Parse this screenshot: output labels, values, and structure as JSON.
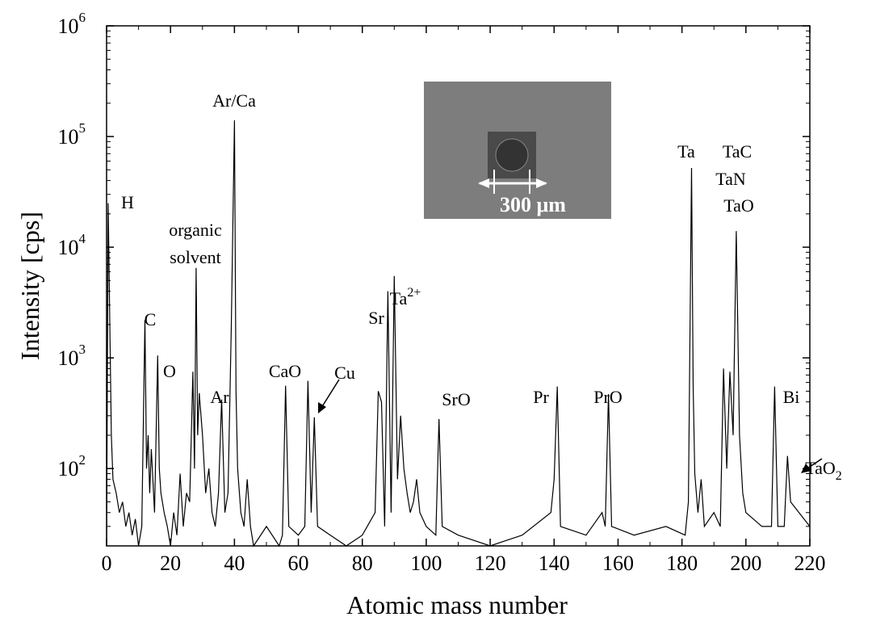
{
  "chart_data": {
    "type": "line",
    "x_label": "Atomic mass number",
    "y_label": "Intensity [cps]",
    "log_y": true,
    "color": "#000000",
    "xlim": [
      0,
      220
    ],
    "xticks": [
      0,
      20,
      40,
      60,
      80,
      100,
      120,
      140,
      160,
      180,
      200,
      220
    ],
    "ylim": [
      20,
      1000000
    ],
    "yticks": [
      {
        "value": 100,
        "label": "10",
        "label_sup": "2"
      },
      {
        "value": 1000,
        "label": "10",
        "label_sup": "3"
      },
      {
        "value": 10000,
        "label": "10",
        "label_sup": "4"
      },
      {
        "value": 100000,
        "label": "10",
        "label_sup": "5"
      },
      {
        "value": 1000000,
        "label": "10",
        "label_sup": "6"
      }
    ],
    "x": [
      0,
      0.5,
      1,
      1.5,
      2,
      3,
      4,
      5,
      6,
      7,
      8,
      9,
      10,
      11,
      12,
      12.5,
      13,
      13.5,
      14,
      15,
      16,
      16.5,
      17,
      18,
      19,
      20,
      21,
      22,
      23,
      24,
      25,
      26,
      27,
      27.5,
      28,
      28.5,
      29,
      30,
      31,
      32,
      33,
      34,
      35,
      36,
      37,
      38,
      39,
      40,
      40.5,
      41,
      42,
      43,
      44,
      45,
      46,
      50,
      54,
      55,
      56,
      57,
      60,
      62,
      63,
      64,
      65,
      66,
      70,
      75,
      80,
      84,
      85,
      86,
      87,
      88,
      89,
      90,
      91,
      92,
      93,
      94,
      95,
      96,
      97,
      98,
      100,
      103,
      104,
      105,
      110,
      120,
      130,
      139,
      140,
      141,
      142,
      150,
      155,
      156,
      157,
      158,
      165,
      175,
      181,
      182,
      183,
      183.5,
      184,
      185,
      186,
      187,
      190,
      192,
      193,
      194,
      195,
      196,
      197,
      198,
      199,
      200,
      205,
      208,
      209,
      210,
      212,
      213,
      214,
      220
    ],
    "values": [
      20,
      25000,
      2000,
      200,
      80,
      60,
      40,
      50,
      30,
      40,
      25,
      35,
      20,
      30,
      2200,
      100,
      200,
      60,
      150,
      40,
      1050,
      100,
      60,
      40,
      30,
      20,
      40,
      25,
      90,
      30,
      60,
      50,
      750,
      100,
      6500,
      200,
      480,
      200,
      60,
      100,
      40,
      30,
      60,
      420,
      40,
      60,
      1800,
      140000,
      500,
      100,
      40,
      30,
      80,
      30,
      20,
      30,
      20,
      25,
      560,
      30,
      25,
      30,
      620,
      40,
      290,
      30,
      25,
      20,
      25,
      40,
      500,
      400,
      30,
      4000,
      40,
      5500,
      80,
      300,
      100,
      60,
      40,
      50,
      80,
      40,
      30,
      25,
      280,
      30,
      25,
      20,
      25,
      40,
      80,
      550,
      30,
      25,
      40,
      30,
      470,
      30,
      25,
      30,
      25,
      50,
      52000,
      550,
      90,
      40,
      80,
      30,
      40,
      30,
      800,
      100,
      750,
      200,
      14000,
      200,
      60,
      40,
      30,
      30,
      550,
      30,
      30,
      130,
      50,
      30
    ],
    "annotations": [
      {
        "text": "H"
      },
      {
        "text": "C"
      },
      {
        "text": "O"
      },
      {
        "text": "organic"
      },
      {
        "text": "solvent"
      },
      {
        "text": "Ar/Ca"
      },
      {
        "text": "Ar"
      },
      {
        "text": "CaO"
      },
      {
        "text": "Cu"
      },
      {
        "text": "Sr"
      },
      {
        "text": "Ta",
        "sup": "2+"
      },
      {
        "text": "SrO"
      },
      {
        "text": "Pr"
      },
      {
        "text": "PrO"
      },
      {
        "text": "Ta"
      },
      {
        "text": "TaC"
      },
      {
        "text": "TaN"
      },
      {
        "text": "TaO"
      },
      {
        "text": "Bi"
      },
      {
        "text": "TaO",
        "sub": "2"
      }
    ],
    "inset_label": "300 μm"
  }
}
